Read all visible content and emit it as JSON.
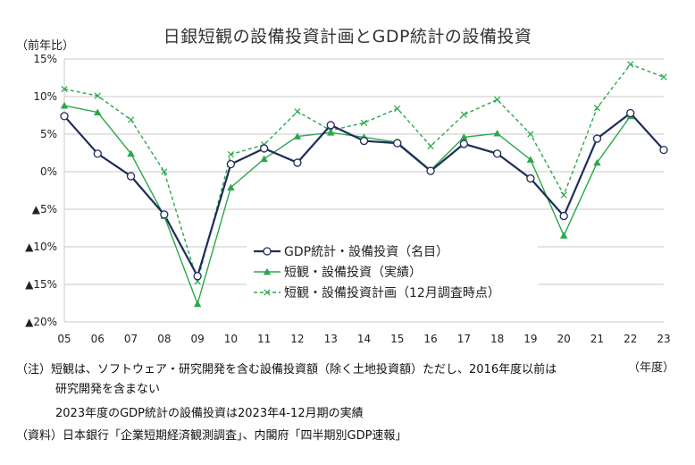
{
  "title": "日銀短観の設備投資計画とGDP統計の設備投資",
  "y_unit": "（前年比）",
  "x_unit": "（年度）",
  "notes": {
    "line1": "（注）短観は、ソフトウェア・研究開発を含む設備投資額（除く土地投資額）ただし、2016年度以前は",
    "line2": "研究開発を含まない",
    "line3": "2023年度のGDP統計の設備投資は2023年4-12月期の実績",
    "line4": "（資料）日本銀行「企業短期経済観測調査」、内閣府「四半期別GDP速報」"
  },
  "chart_data": {
    "type": "line",
    "title": "日銀短観の設備投資計画とGDP統計の設備投資",
    "ylabel": "（前年比）",
    "xlabel": "（年度）",
    "categories": [
      "05",
      "06",
      "07",
      "08",
      "09",
      "10",
      "11",
      "12",
      "13",
      "14",
      "15",
      "16",
      "17",
      "18",
      "19",
      "20",
      "21",
      "22",
      "23"
    ],
    "ylim": [
      -20,
      15
    ],
    "yticks": [
      15,
      10,
      5,
      0,
      -5,
      -10,
      -15,
      -20
    ],
    "ytick_labels": [
      "15%",
      "10%",
      "5%",
      "0%",
      "▲5%",
      "▲10%",
      "▲15%",
      "▲20%"
    ],
    "grid": true,
    "legend_position": "center-right",
    "series": [
      {
        "name": "GDP統計・設備投資（名目）",
        "color": "#1f2d5a",
        "marker": "circle",
        "dash": "solid",
        "values": [
          7.4,
          2.4,
          -0.6,
          -5.7,
          -13.9,
          1.0,
          3.1,
          1.2,
          6.2,
          4.1,
          3.8,
          0.1,
          3.7,
          2.4,
          -0.9,
          -5.9,
          4.4,
          7.8,
          2.9
        ]
      },
      {
        "name": "短観・設備投資（実績）",
        "color": "#2aa84a",
        "marker": "triangle",
        "dash": "solid",
        "values": [
          8.8,
          7.9,
          2.4,
          -5.9,
          -17.6,
          -2.1,
          1.7,
          4.7,
          5.2,
          4.6,
          3.9,
          0.2,
          4.6,
          5.1,
          1.6,
          -8.5,
          1.2,
          7.4,
          null
        ]
      },
      {
        "name": "短観・設備投資計画（12月調査時点）",
        "color": "#2aa84a",
        "marker": "x",
        "dash": "dashed",
        "values": [
          11.0,
          10.1,
          6.9,
          0.0,
          -14.6,
          2.3,
          3.6,
          8.0,
          5.5,
          6.5,
          8.4,
          3.4,
          7.6,
          9.6,
          5.0,
          -3.1,
          8.5,
          14.3,
          12.6
        ]
      }
    ]
  }
}
